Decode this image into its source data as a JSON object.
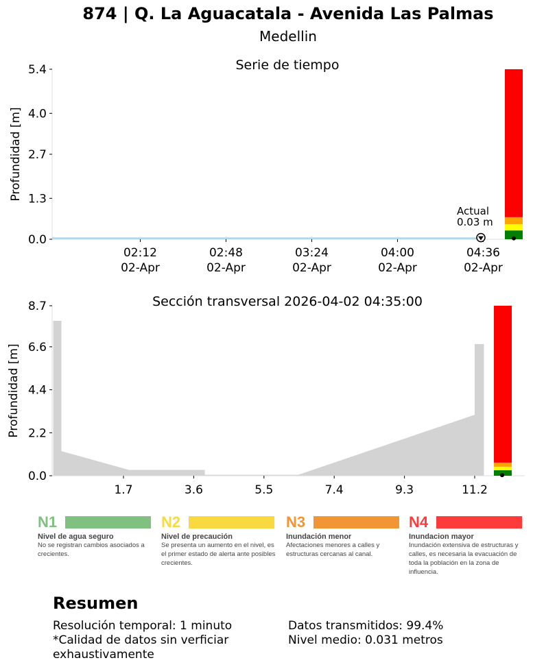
{
  "header": {
    "title": "874 | Q. La Aguacatala - Avenida Las Palmas",
    "subtitle": "Medellin"
  },
  "chart_data": [
    {
      "type": "line",
      "title": "Serie de tiempo",
      "ylabel": "Profundidad [m]",
      "xlabel": "",
      "ylim": [
        0,
        5.4
      ],
      "yticks": [
        "0.0",
        "1.3",
        "2.7",
        "4.0",
        "5.4"
      ],
      "xlim": [
        "01:35",
        "04:35"
      ],
      "xticks": [
        {
          "time": "02:12",
          "date": "02-Apr"
        },
        {
          "time": "02:48",
          "date": "02-Apr"
        },
        {
          "time": "03:24",
          "date": "02-Apr"
        },
        {
          "time": "04:00",
          "date": "02-Apr"
        },
        {
          "time": "04:36",
          "date": "02-Apr"
        }
      ],
      "series": [
        {
          "x": [
            "01:35",
            "02:12",
            "02:48",
            "03:24",
            "04:00",
            "04:35"
          ],
          "y": [
            0.03,
            0.03,
            0.03,
            0.03,
            0.03,
            0.03
          ],
          "color": "#add8e6"
        }
      ],
      "annotation": {
        "label": "Actual",
        "value": "0.03 m",
        "y": 0.03
      },
      "level_bar": [
        {
          "from": 0,
          "to": 0.28,
          "color": "#008000"
        },
        {
          "from": 0.28,
          "to": 0.48,
          "color": "#ffff00"
        },
        {
          "from": 0.48,
          "to": 0.7,
          "color": "#ffa500"
        },
        {
          "from": 0.7,
          "to": 5.4,
          "color": "#ff0000"
        }
      ],
      "current_level": 0.03
    },
    {
      "type": "area",
      "title": "Sección transversal 2026-04-02 04:35:00",
      "ylabel": "Profundidad [m]",
      "xlabel": "",
      "ylim": [
        0,
        8.7
      ],
      "yticks": [
        "0.0",
        "2.2",
        "4.4",
        "6.6",
        "8.7"
      ],
      "xticks": [
        "1.7",
        "3.6",
        "5.5",
        "7.4",
        "9.3",
        "11.2"
      ],
      "xlim": [
        -0.2,
        11.2
      ],
      "profile": {
        "x": [
          -0.2,
          0.02,
          0.02,
          1.85,
          3.9,
          3.9,
          6.43,
          11.2,
          11.2,
          11.45,
          11.45
        ],
        "y": [
          7.93,
          7.93,
          1.26,
          0.3,
          0.3,
          0.05,
          0.05,
          3.12,
          6.74,
          6.74,
          0
        ],
        "color": "#d3d3d3"
      },
      "level_bar": [
        {
          "from": 0,
          "to": 0.28,
          "color": "#008000"
        },
        {
          "from": 0.28,
          "to": 0.46,
          "color": "#ffff00"
        },
        {
          "from": 0.46,
          "to": 0.67,
          "color": "#ffa500"
        },
        {
          "from": 0.67,
          "to": 8.7,
          "color": "#ff0000"
        }
      ],
      "current_level": 0.03
    }
  ],
  "legend": [
    {
      "code": "N1",
      "title": "Nivel de agua seguro",
      "desc": "No se registran cambios asociados a crecientes.",
      "color": "#80c080"
    },
    {
      "code": "N2",
      "title": "Nivel de precaución",
      "desc": "Se presenta un aumento en el nivel, es el primer estado de alerta ante posibles crecientes.",
      "color": "#f8da40"
    },
    {
      "code": "N3",
      "title": "Inundación menor",
      "desc": "Afectaciones menores a calles y estructuras cercanas al canal.",
      "color": "#f29535"
    },
    {
      "code": "N4",
      "title": "Inundacion mayor",
      "desc": "Inundación extensiva de estructuras y calles, es necesaria la evacuación de toda la población en la zona de influencia.",
      "color": "#fd3b3b"
    }
  ],
  "summary": {
    "title": "Resumen",
    "resolution": "Resolución temporal: 1 minuto",
    "quality": "*Calidad de datos sin verficiar exhaustivamente",
    "transmitted": "Datos transmitidos: 99.4%",
    "mean": "Nivel medio: 0.031 metros"
  }
}
